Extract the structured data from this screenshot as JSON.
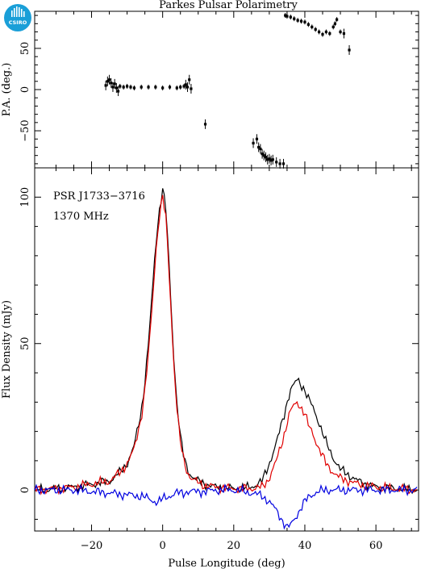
{
  "header": {
    "title": "Parkes Pulsar Polarimetry",
    "logo_text": "CSIRO"
  },
  "chart_data": [
    {
      "id": "pa-panel",
      "type": "scatter",
      "ylabel": "P.A. (deg.)",
      "xlim": [
        -36,
        72
      ],
      "ylim": [
        -95,
        95
      ],
      "y_ticks": [
        -50,
        0,
        50
      ],
      "error_bars": true,
      "series": [
        {
          "marker": "square",
          "color": "#000000",
          "x": [
            -16,
            -15.5,
            -15,
            -14.5,
            -14,
            -13.5,
            -13,
            -12.5,
            -12,
            -11,
            -10,
            -9,
            -8,
            -6,
            -4,
            -2,
            0,
            2,
            4,
            5,
            6,
            6.5,
            7,
            7.5,
            8,
            12,
            25.5,
            26.5,
            27,
            27.5,
            28,
            28.5,
            29,
            29.5,
            30,
            30.5,
            31,
            32,
            33,
            34,
            34.5,
            35,
            36,
            37,
            38,
            39,
            40,
            41,
            42,
            43,
            44,
            45,
            46,
            47,
            48,
            48.5,
            49,
            50,
            51,
            52.5
          ],
          "y": [
            5,
            10,
            12,
            8,
            3,
            7,
            2,
            -2,
            4,
            3,
            4,
            3,
            2,
            3,
            3,
            3,
            2,
            3,
            2,
            3,
            4,
            6,
            3,
            12,
            1,
            -42,
            -65,
            -60,
            -70,
            -72,
            -78,
            -80,
            -82,
            -85,
            -84,
            -86,
            -85,
            -88,
            -90,
            -90,
            90,
            89,
            88,
            86,
            84,
            83,
            82,
            79,
            76,
            73,
            70,
            67,
            70,
            68,
            76,
            80,
            85,
            70,
            68,
            48
          ]
        }
      ]
    },
    {
      "id": "flux-panel",
      "type": "line",
      "xlabel": "Pulse Longitude (deg)",
      "ylabel": "Flux Density (mJy)",
      "xlim": [
        -36,
        72
      ],
      "ylim": [
        -14,
        110
      ],
      "x_ticks": [
        -20,
        0,
        20,
        40,
        60
      ],
      "y_ticks": [
        0,
        50,
        100
      ],
      "annotations": [
        "PSR J1733−3716",
        "1370 MHz"
      ],
      "x": [
        -36,
        -30,
        -25,
        -20,
        -15,
        -12,
        -10,
        -8,
        -6,
        -5,
        -4,
        -3,
        -2,
        -1,
        0,
        1,
        2,
        3,
        4,
        5,
        6,
        7,
        8,
        10,
        12,
        15,
        20,
        25,
        28,
        30,
        32,
        34,
        35,
        36,
        37,
        38,
        39,
        40,
        41,
        42,
        44,
        46,
        48,
        50,
        55,
        60,
        65,
        72
      ],
      "series": [
        {
          "color": "#000000",
          "values": [
            0,
            0.5,
            1,
            2,
            3,
            6,
            9,
            15,
            27,
            37,
            50,
            66,
            83,
            95,
            103,
            95,
            72,
            48,
            30,
            18,
            11,
            7,
            5,
            3,
            2,
            1,
            0.5,
            1,
            3,
            9,
            16,
            25,
            30,
            34,
            36,
            38,
            36,
            34,
            31,
            29,
            23,
            16,
            11,
            7,
            3,
            1,
            0.5,
            0
          ]
        },
        {
          "color": "#e00000",
          "values": [
            0,
            0.5,
            1,
            2,
            3,
            6,
            9,
            14,
            25,
            34,
            46,
            62,
            80,
            93,
            100,
            92,
            70,
            46,
            28,
            16,
            10,
            6,
            4,
            2.5,
            1.5,
            1,
            0.5,
            0.5,
            1,
            4,
            10,
            18,
            23,
            27,
            29,
            30,
            28,
            26,
            22,
            20,
            14,
            9,
            6,
            4,
            2,
            1,
            0.5,
            0
          ]
        },
        {
          "color": "#0000e0",
          "values": [
            0,
            0,
            0,
            -0.5,
            -1,
            -1.5,
            -1.5,
            -2,
            -2,
            -2.5,
            -3,
            -3.5,
            -4,
            -4,
            -3,
            -2.5,
            -2,
            -1.5,
            -1,
            -1,
            -1,
            -0.5,
            -0.5,
            -0.5,
            -0.5,
            0,
            0,
            -1,
            -2,
            -4,
            -7,
            -11,
            -13,
            -12,
            -10,
            -8,
            -6,
            -4,
            -2.5,
            -1.5,
            -0.5,
            0,
            0,
            0,
            0,
            0,
            0,
            0
          ]
        }
      ]
    }
  ]
}
